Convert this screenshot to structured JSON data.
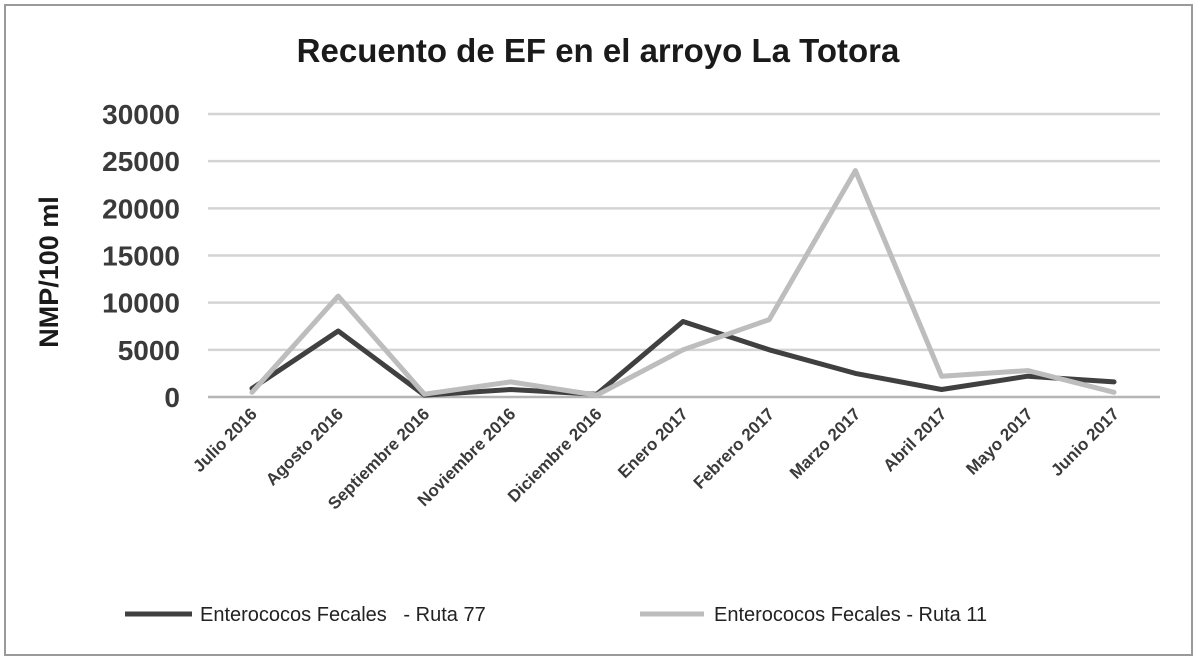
{
  "chart_data": {
    "type": "line",
    "title": "Recuento de EF en el arroyo La Totora",
    "xlabel": "",
    "ylabel": "NMP/100 ml",
    "ylim": [
      0,
      30000
    ],
    "yticks": [
      0,
      5000,
      10000,
      15000,
      20000,
      25000,
      30000
    ],
    "grid": true,
    "legend_position": "bottom",
    "categories": [
      "Julio 2016",
      "Agosto 2016",
      "Septiembre 2016",
      "Noviembre 2016",
      "Diciembre 2016",
      "Enero 2017",
      "Febrero 2017",
      "Marzo 2017",
      "Abril 2017",
      "Mayo 2017",
      "Junio 2017"
    ],
    "series": [
      {
        "name": "Enterococos Fecales   - Ruta 77",
        "color": "#404040",
        "values": [
          900,
          7000,
          200,
          800,
          300,
          8000,
          5000,
          2500,
          800,
          2200,
          1600
        ]
      },
      {
        "name": "Enterococos Fecales - Ruta 11",
        "color": "#bdbdbd",
        "values": [
          500,
          10700,
          300,
          1600,
          200,
          5000,
          8200,
          24000,
          2200,
          2800,
          500
        ]
      }
    ]
  }
}
